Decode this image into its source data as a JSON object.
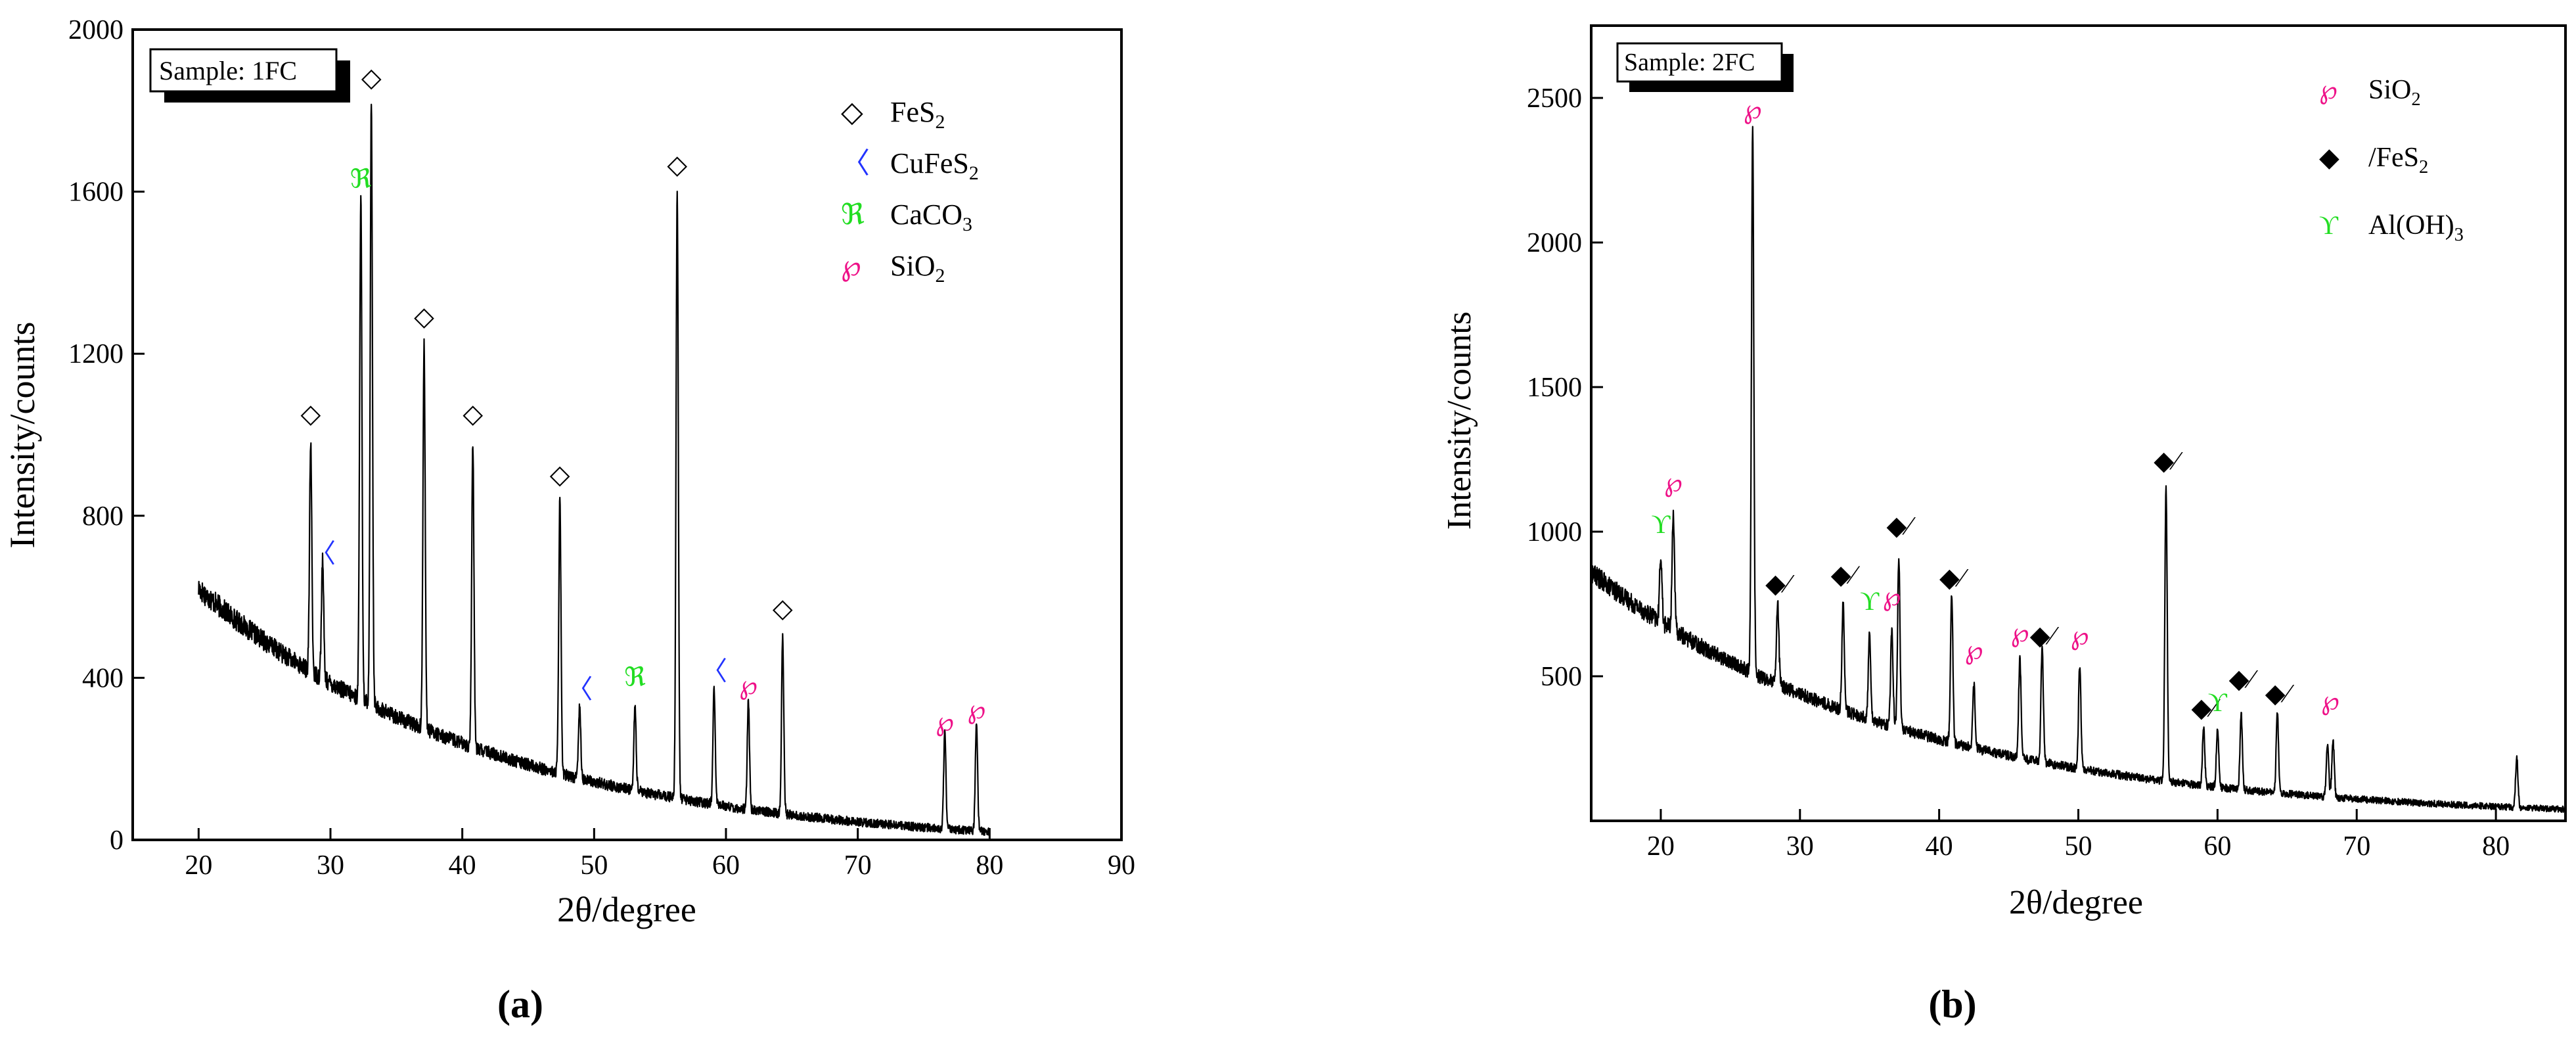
{
  "chart_data": [
    {
      "type": "line",
      "panel_label": "(a)",
      "sample_label": "Sample: 1FC",
      "xlabel": "2θ/degree",
      "ylabel": "Intensity/counts",
      "xlim": [
        15,
        90
      ],
      "ylim": [
        0,
        2000
      ],
      "xticks": [
        20,
        30,
        40,
        50,
        60,
        70,
        80,
        90
      ],
      "yticks": [
        0,
        400,
        800,
        1200,
        1600,
        2000
      ],
      "baseline": {
        "start": 20,
        "end": 80,
        "y0": 620,
        "y_end": 95,
        "decay": 0.045,
        "floor": 20
      },
      "peaks": [
        {
          "x": 28.5,
          "y": 980
        },
        {
          "x": 29.4,
          "y": 690
        },
        {
          "x": 32.3,
          "y": 1585
        },
        {
          "x": 33.1,
          "y": 1815
        },
        {
          "x": 37.1,
          "y": 1225
        },
        {
          "x": 40.8,
          "y": 975
        },
        {
          "x": 47.4,
          "y": 840
        },
        {
          "x": 48.9,
          "y": 335
        },
        {
          "x": 53.1,
          "y": 330
        },
        {
          "x": 56.3,
          "y": 1595
        },
        {
          "x": 59.1,
          "y": 375
        },
        {
          "x": 61.7,
          "y": 340
        },
        {
          "x": 64.3,
          "y": 500
        },
        {
          "x": 76.6,
          "y": 265
        },
        {
          "x": 79.0,
          "y": 290
        }
      ],
      "phases": [
        {
          "symbol": "◇",
          "name": "FeS",
          "sub": "2",
          "color": "#000000"
        },
        {
          "symbol": "〈",
          "name": "CuFeS",
          "sub": "2",
          "color": "#2233ff"
        },
        {
          "symbol": "ℜ",
          "name": "CaCO",
          "sub": "3",
          "color": "#22dd22"
        },
        {
          "symbol": "℘",
          "name": "SiO",
          "sub": "2",
          "color": "#ee1188"
        }
      ],
      "markers": [
        {
          "x": 28.5,
          "y": 1030,
          "phase": 0
        },
        {
          "x": 29.4,
          "y": 685,
          "phase": 1
        },
        {
          "x": 32.3,
          "y": 1610,
          "phase": 2
        },
        {
          "x": 33.1,
          "y": 1860,
          "phase": 0
        },
        {
          "x": 37.1,
          "y": 1270,
          "phase": 0
        },
        {
          "x": 40.8,
          "y": 1030,
          "phase": 0
        },
        {
          "x": 47.4,
          "y": 880,
          "phase": 0
        },
        {
          "x": 48.9,
          "y": 350,
          "phase": 1
        },
        {
          "x": 53.1,
          "y": 380,
          "phase": 2
        },
        {
          "x": 56.3,
          "y": 1645,
          "phase": 0
        },
        {
          "x": 59.1,
          "y": 395,
          "phase": 1
        },
        {
          "x": 61.7,
          "y": 360,
          "phase": 3
        },
        {
          "x": 64.3,
          "y": 550,
          "phase": 0
        },
        {
          "x": 76.6,
          "y": 270,
          "phase": 3
        },
        {
          "x": 79.0,
          "y": 300,
          "phase": 3
        }
      ]
    },
    {
      "type": "line",
      "panel_label": "(b)",
      "sample_label": "Sample: 2FC",
      "xlabel": "2θ/degree",
      "ylabel": "Intensity/counts",
      "xlim": [
        15,
        85
      ],
      "ylim": [
        0,
        2750
      ],
      "xticks": [
        20,
        30,
        40,
        50,
        60,
        70,
        80
      ],
      "yticks": [
        500,
        1000,
        1500,
        2000,
        2500
      ],
      "baseline": {
        "start": 15,
        "end": 85,
        "y0": 860,
        "y_end": 100,
        "decay": 0.045,
        "floor": 40
      },
      "peaks": [
        {
          "x": 20.0,
          "y": 920
        },
        {
          "x": 20.9,
          "y": 1070
        },
        {
          "x": 26.6,
          "y": 2380
        },
        {
          "x": 28.4,
          "y": 750
        },
        {
          "x": 33.1,
          "y": 750
        },
        {
          "x": 35.0,
          "y": 650
        },
        {
          "x": 36.6,
          "y": 660
        },
        {
          "x": 37.1,
          "y": 910
        },
        {
          "x": 40.9,
          "y": 790
        },
        {
          "x": 42.5,
          "y": 470
        },
        {
          "x": 45.8,
          "y": 560
        },
        {
          "x": 47.4,
          "y": 600
        },
        {
          "x": 50.1,
          "y": 540
        },
        {
          "x": 56.3,
          "y": 1150
        },
        {
          "x": 59.0,
          "y": 320
        },
        {
          "x": 60.0,
          "y": 320
        },
        {
          "x": 61.7,
          "y": 370
        },
        {
          "x": 64.3,
          "y": 370
        },
        {
          "x": 67.9,
          "y": 270
        },
        {
          "x": 68.3,
          "y": 280
        },
        {
          "x": 81.5,
          "y": 220
        }
      ],
      "phases": [
        {
          "symbol": "℘",
          "name": "SiO",
          "sub": "2",
          "color": "#ee1188"
        },
        {
          "symbol": "◆",
          "name": "/FeS",
          "sub": "2",
          "color": "#000000"
        },
        {
          "symbol": "ϒ",
          "name": "Al(OH)",
          "sub": "3",
          "color": "#22dd22"
        }
      ],
      "markers": [
        {
          "x": 20.0,
          "y": 995,
          "phase": 2
        },
        {
          "x": 20.9,
          "y": 1140,
          "phase": 0
        },
        {
          "x": 26.6,
          "y": 2430,
          "phase": 0
        },
        {
          "x": 28.4,
          "y": 790,
          "phase": 1
        },
        {
          "x": 33.1,
          "y": 820,
          "phase": 1
        },
        {
          "x": 35.0,
          "y": 730,
          "phase": 2
        },
        {
          "x": 36.6,
          "y": 745,
          "phase": 0
        },
        {
          "x": 37.1,
          "y": 990,
          "phase": 1
        },
        {
          "x": 40.9,
          "y": 810,
          "phase": 1
        },
        {
          "x": 42.5,
          "y": 560,
          "phase": 0
        },
        {
          "x": 45.8,
          "y": 620,
          "phase": 0
        },
        {
          "x": 47.4,
          "y": 610,
          "phase": 1
        },
        {
          "x": 50.1,
          "y": 610,
          "phase": 0
        },
        {
          "x": 56.3,
          "y": 1215,
          "phase": 1
        },
        {
          "x": 59.0,
          "y": 360,
          "phase": 1
        },
        {
          "x": 60.0,
          "y": 380,
          "phase": 2
        },
        {
          "x": 61.7,
          "y": 460,
          "phase": 1
        },
        {
          "x": 64.3,
          "y": 410,
          "phase": 1
        },
        {
          "x": 68.1,
          "y": 385,
          "phase": 0
        }
      ]
    }
  ]
}
